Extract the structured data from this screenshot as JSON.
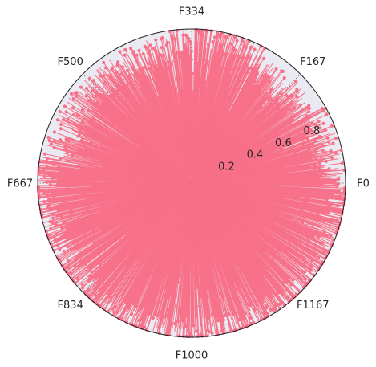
{
  "chart_data": {
    "type": "polar-stem",
    "title": "",
    "angular_ticks": [
      {
        "label": "F0",
        "angle_deg": 0
      },
      {
        "label": "F167",
        "angle_deg": 45
      },
      {
        "label": "F334",
        "angle_deg": 90
      },
      {
        "label": "F500",
        "angle_deg": 135
      },
      {
        "label": "F667",
        "angle_deg": 180
      },
      {
        "label": "F834",
        "angle_deg": 225
      },
      {
        "label": "F1000",
        "angle_deg": 270
      },
      {
        "label": "F1167",
        "angle_deg": 315
      }
    ],
    "radial_ticks": [
      "0.2",
      "0.4",
      "0.6",
      "0.8"
    ],
    "radial_tick_values": [
      0.2,
      0.4,
      0.6,
      0.8
    ],
    "rlim": [
      0,
      1.0
    ],
    "n_points": 1335,
    "grid": true,
    "colors": {
      "series": "#f77189",
      "background": "#eaeaf2",
      "grid": "#888888",
      "spine": "#222222"
    },
    "sectors": [
      {
        "from_deg": 0,
        "to_deg": 30,
        "r_mean": 0.9
      },
      {
        "from_deg": 30,
        "to_deg": 60,
        "r_mean": 0.85
      },
      {
        "from_deg": 60,
        "to_deg": 100,
        "r_mean": 0.95
      },
      {
        "from_deg": 100,
        "to_deg": 170,
        "r_mean": 0.88
      },
      {
        "from_deg": 170,
        "to_deg": 360,
        "r_mean": 0.98
      }
    ]
  }
}
